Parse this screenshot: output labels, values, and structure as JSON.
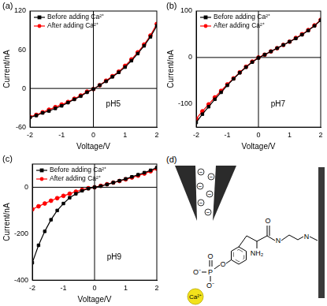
{
  "chart_data": [
    {
      "type": "line",
      "title": "(a)",
      "annotations": [
        "pH5"
      ],
      "x_label": "Voltage/V",
      "y_label": "Current/nA",
      "x": [
        -2,
        -1.8,
        -1.6,
        -1.4,
        -1.2,
        -1,
        -0.8,
        -0.6,
        -0.4,
        -0.2,
        0,
        0.2,
        0.4,
        0.6,
        0.8,
        1,
        1.2,
        1.4,
        1.6,
        1.8,
        2
      ],
      "series": [
        {
          "name": "Before adding Ca²⁺",
          "color": "#000000",
          "marker": "square",
          "values": [
            -45,
            -42,
            -38,
            -35,
            -31,
            -27,
            -22,
            -17,
            -12,
            -6,
            -1,
            5,
            11,
            18,
            25,
            33,
            43,
            54,
            66,
            80,
            97
          ]
        },
        {
          "name": "After adding Ca²⁺",
          "color": "#ff0000",
          "marker": "circle",
          "values": [
            -44,
            -41,
            -37,
            -33,
            -29,
            -25,
            -21,
            -16,
            -11,
            -5,
            -1,
            5,
            12,
            19,
            26,
            35,
            45,
            56,
            68,
            82,
            100
          ]
        }
      ],
      "xlim": [
        -2,
        2
      ],
      "xticks": [
        -2,
        -1,
        0,
        1,
        2
      ],
      "ylim": [
        -60,
        120
      ],
      "yticks": [
        -60,
        0,
        60,
        120
      ],
      "grid": false,
      "legend": "upper left"
    },
    {
      "type": "line",
      "title": "(b)",
      "annotations": [
        "pH7"
      ],
      "x_label": "Voltage/V",
      "y_label": "Current/nA",
      "x": [
        -2,
        -1.8,
        -1.6,
        -1.4,
        -1.2,
        -1,
        -0.8,
        -0.6,
        -0.4,
        -0.2,
        0,
        0.2,
        0.4,
        0.6,
        0.8,
        1,
        1.2,
        1.4,
        1.6,
        1.8,
        2
      ],
      "series": [
        {
          "name": "Before adding Ca²⁺",
          "color": "#000000",
          "marker": "square",
          "values": [
            -140,
            -122,
            -106,
            -90,
            -75,
            -60,
            -46,
            -33,
            -21,
            -10,
            -1,
            6,
            13,
            20,
            27,
            34,
            41,
            49,
            58,
            68,
            80
          ]
        },
        {
          "name": "After adding Ca²⁺",
          "color": "#ff0000",
          "marker": "circle",
          "values": [
            -132,
            -116,
            -101,
            -86,
            -72,
            -58,
            -45,
            -32,
            -20,
            -9,
            0,
            6,
            13,
            20,
            27,
            34,
            42,
            50,
            59,
            69,
            81
          ]
        }
      ],
      "xlim": [
        -2,
        2
      ],
      "xticks": [
        -2,
        -1,
        0,
        1,
        2
      ],
      "ylim": [
        -150,
        100
      ],
      "yticks": [
        -100,
        0,
        100
      ],
      "grid": false,
      "legend": "upper left"
    },
    {
      "type": "line",
      "title": "(c)",
      "annotations": [
        "pH9"
      ],
      "x_label": "Voltage/V",
      "y_label": "Current/nA",
      "x": [
        -2,
        -1.8,
        -1.6,
        -1.4,
        -1.2,
        -1,
        -0.8,
        -0.6,
        -0.4,
        -0.2,
        0,
        0.2,
        0.4,
        0.6,
        0.8,
        1,
        1.2,
        1.4,
        1.6,
        1.8,
        2
      ],
      "series": [
        {
          "name": "Before adding Ca²⁺",
          "color": "#000000",
          "marker": "square",
          "values": [
            -325,
            -250,
            -190,
            -140,
            -100,
            -70,
            -45,
            -28,
            -15,
            -6,
            0,
            5,
            12,
            20,
            28,
            36,
            45,
            54,
            63,
            73,
            85
          ]
        },
        {
          "name": "After adding Ca²⁺",
          "color": "#ff0000",
          "marker": "circle",
          "values": [
            -95,
            -82,
            -70,
            -58,
            -47,
            -37,
            -28,
            -19,
            -11,
            -4,
            0,
            6,
            13,
            20,
            27,
            34,
            42,
            50,
            59,
            69,
            80
          ]
        }
      ],
      "xlim": [
        -2,
        2
      ],
      "xticks": [
        -2,
        -1,
        0,
        1,
        2
      ],
      "ylim": [
        -400,
        100
      ],
      "yticks": [
        -400,
        -200,
        0
      ],
      "grid": false,
      "legend": "upper left"
    }
  ],
  "diagram": {
    "title": "(d)",
    "labels": [
      "O",
      "N",
      "N",
      "NH₂",
      "O",
      "P",
      "O",
      "O⁻",
      "O⁻"
    ],
    "charges": [
      "−",
      "−",
      "−",
      "−",
      "−",
      "−"
    ],
    "ion": "Ca²⁺"
  }
}
